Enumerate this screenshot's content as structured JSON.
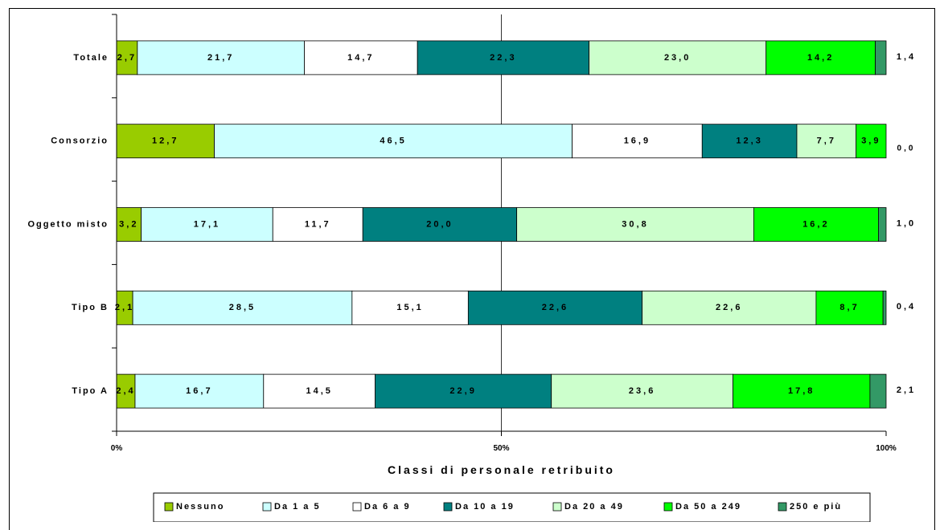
{
  "chart_data": {
    "type": "bar",
    "orientation": "horizontal",
    "stacked": "percent",
    "categories": [
      "Totale",
      "Consorzio",
      "Oggetto misto",
      "Tipo B",
      "Tipo A"
    ],
    "series": [
      {
        "name": "Nessuno",
        "color": "#99cc00",
        "values": [
          2.7,
          12.7,
          3.2,
          2.1,
          2.4
        ]
      },
      {
        "name": "Da 1 a 5",
        "color": "#ccffff",
        "values": [
          21.7,
          46.5,
          17.1,
          28.5,
          16.7
        ]
      },
      {
        "name": "Da 6 a 9",
        "color": "#ffffff",
        "values": [
          14.7,
          16.9,
          11.7,
          15.1,
          14.5
        ]
      },
      {
        "name": "Da 10 a 19",
        "color": "#008080",
        "values": [
          22.3,
          12.3,
          20.0,
          22.6,
          22.9
        ]
      },
      {
        "name": "Da 20 a 49",
        "color": "#ccffcc",
        "values": [
          23.0,
          7.7,
          30.8,
          22.6,
          23.6
        ]
      },
      {
        "name": "Da 50 a 249",
        "color": "#00ff00",
        "values": [
          14.2,
          3.9,
          16.2,
          8.7,
          17.8
        ]
      },
      {
        "name": "250 e più",
        "color": "#339966",
        "values": [
          1.4,
          0.0,
          1.0,
          0.4,
          2.1
        ]
      }
    ],
    "value_labels": [
      [
        "2,7",
        "21,7",
        "14,7",
        "22,3",
        "23,0",
        "14,2",
        "1,4"
      ],
      [
        "12,7",
        "46,5",
        "16,9",
        "12,3",
        "7,7",
        "3,9",
        "0,0"
      ],
      [
        "3,2",
        "17,1",
        "11,7",
        "20,0",
        "30,8",
        "16,2",
        "1,0"
      ],
      [
        "2,1",
        "28,5",
        "15,1",
        "22,6",
        "22,6",
        "8,7",
        "0,4"
      ],
      [
        "2,4",
        "16,7",
        "14,5",
        "22,9",
        "23,6",
        "17,8",
        "2,1"
      ]
    ],
    "xlabel": "Classi di personale retribuito",
    "xticks": [
      "0%",
      "50%",
      "100%"
    ],
    "xlim": [
      0,
      100
    ],
    "grid": "vertical at 50%",
    "legend": "bottom"
  }
}
